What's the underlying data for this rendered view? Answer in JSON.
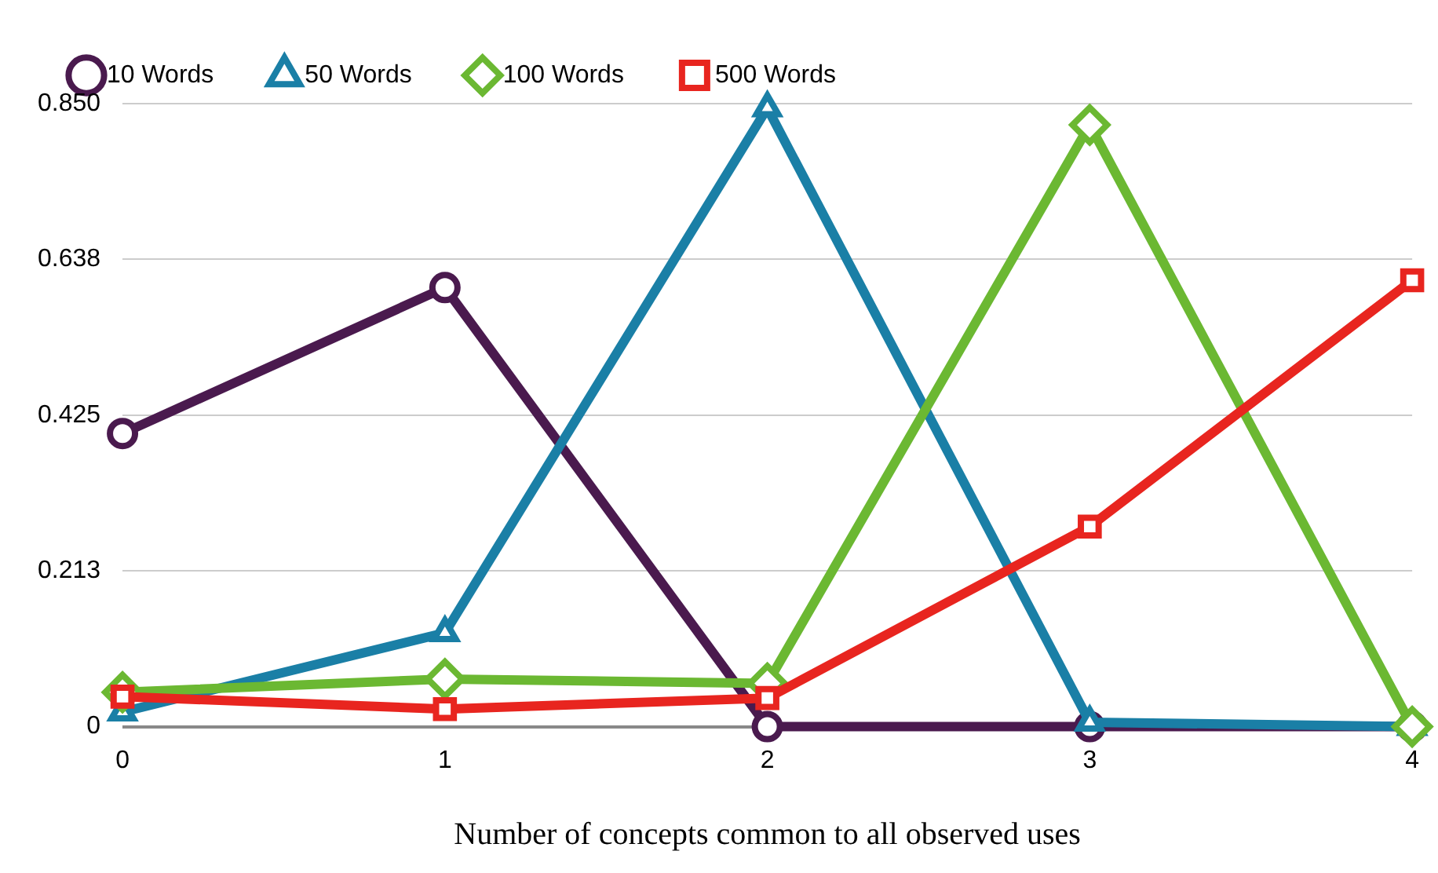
{
  "chart_data": {
    "type": "line",
    "xlabel": "Number of concepts common to all observed uses",
    "categories": [
      "0",
      "1",
      "2",
      "3",
      "4"
    ],
    "series": [
      {
        "name": "10 Words",
        "color": "#4a1a4e",
        "marker": "circle",
        "values": [
          0.4,
          0.599,
          0,
          0,
          0
        ]
      },
      {
        "name": "50 Words",
        "color": "#1a7fa6",
        "marker": "triangle",
        "values": [
          0.02,
          0.128,
          0.844,
          0.006,
          0
        ]
      },
      {
        "name": "100 Words",
        "color": "#6bb832",
        "marker": "diamond",
        "values": [
          0.047,
          0.065,
          0.059,
          0.821,
          0
        ]
      },
      {
        "name": "500 Words",
        "color": "#e8251f",
        "marker": "square",
        "values": [
          0.041,
          0.024,
          0.039,
          0.273,
          0.609
        ]
      }
    ],
    "ylim": [
      0,
      0.85
    ],
    "yticks": [
      0,
      {
        "value": 0.2125,
        "label": "0.213"
      },
      {
        "value": 0.425,
        "label": "0.425"
      },
      {
        "value": 0.6375,
        "label": "0.638"
      },
      {
        "value": 0.85,
        "label": "0.850"
      }
    ],
    "grid": "y",
    "legend": "top",
    "line_style": "solid"
  }
}
